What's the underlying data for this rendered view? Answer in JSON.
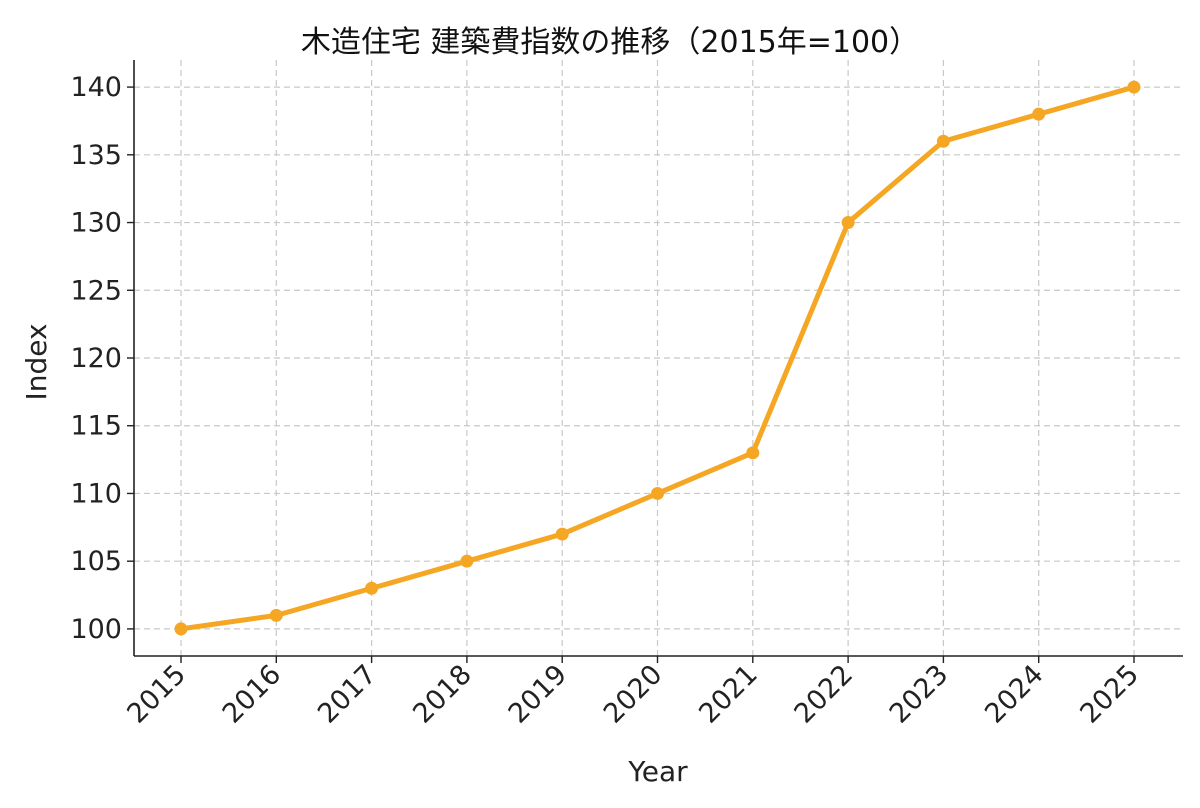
{
  "chart_data": {
    "type": "line",
    "title": "木造住宅 建築費指数の推移（2015年=100）",
    "xlabel": "Year",
    "ylabel": "Index",
    "categories": [
      "2015",
      "2016",
      "2017",
      "2018",
      "2019",
      "2020",
      "2021",
      "2022",
      "2023",
      "2024",
      "2025"
    ],
    "series": [
      {
        "values": [
          100,
          101,
          103,
          105,
          107,
          110,
          113,
          130,
          136,
          138,
          140
        ]
      }
    ],
    "ylim": [
      98,
      142
    ],
    "yticks": [
      100,
      105,
      110,
      115,
      120,
      125,
      130,
      135,
      140
    ],
    "ytick_labels": [
      "100",
      "105",
      "110",
      "115",
      "120",
      "125",
      "130",
      "135",
      "140"
    ],
    "grid": true,
    "line_color": "#f5a623",
    "legend": "none"
  }
}
